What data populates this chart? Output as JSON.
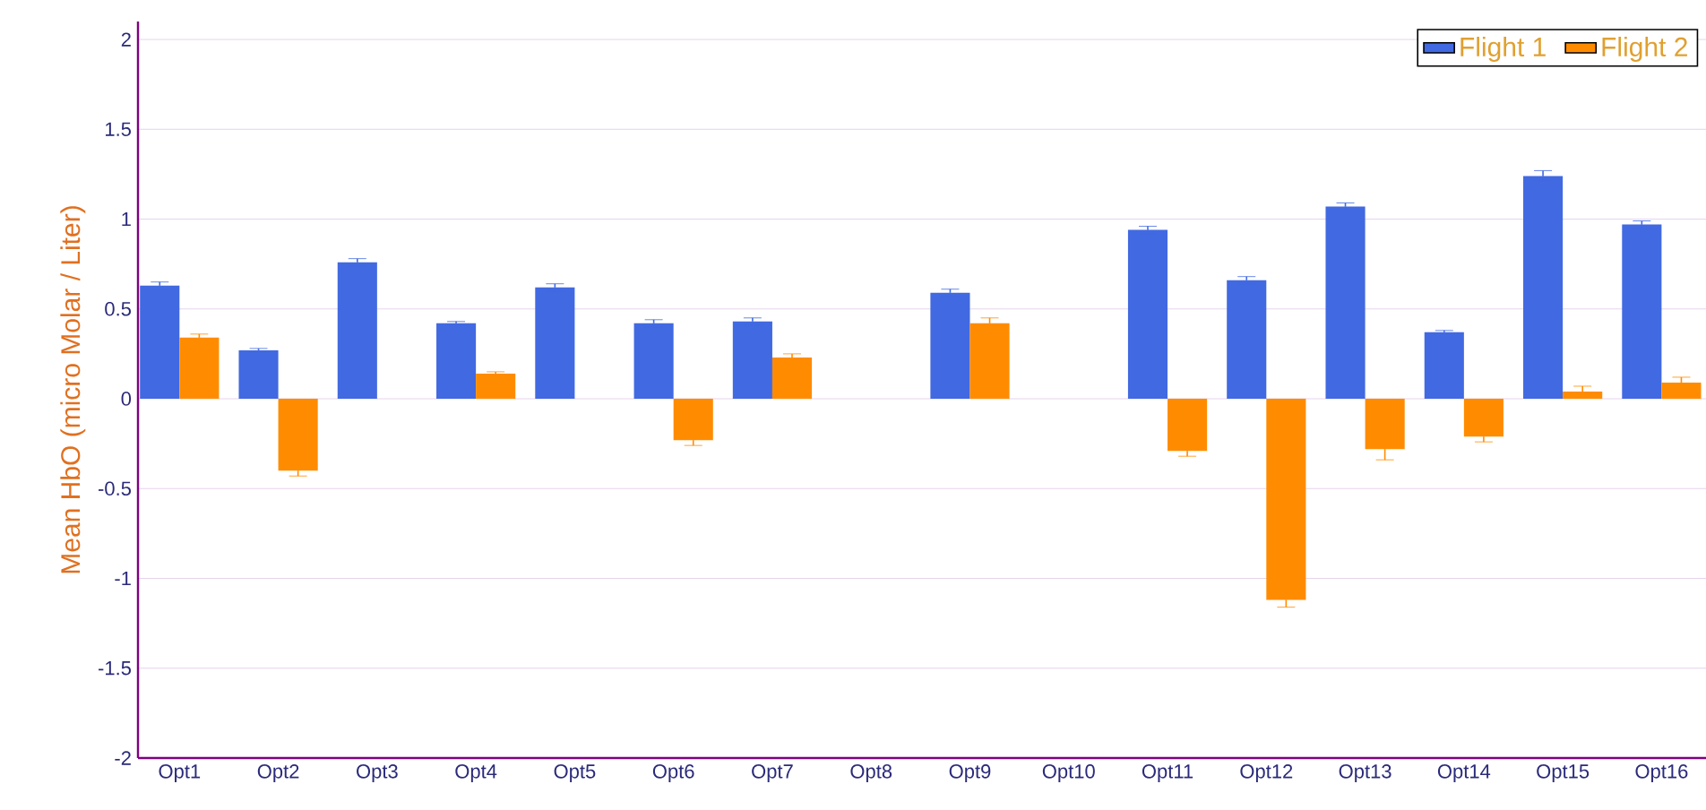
{
  "chart_data": {
    "type": "bar",
    "ylabel": "Mean HbO (micro Molar / Liter)",
    "categories": [
      "Opt1",
      "Opt2",
      "Opt3",
      "Opt4",
      "Opt5",
      "Opt6",
      "Opt7",
      "Opt8",
      "Opt9",
      "Opt10",
      "Opt11",
      "Opt12",
      "Opt13",
      "Opt14",
      "Opt15",
      "Opt16"
    ],
    "series": [
      {
        "name": "Flight 1",
        "color": "#4169e1",
        "values": [
          0.63,
          0.27,
          0.76,
          0.42,
          0.62,
          0.42,
          0.43,
          null,
          0.59,
          null,
          0.94,
          0.66,
          1.07,
          0.37,
          1.24,
          0.97
        ],
        "errors": [
          0.02,
          0.01,
          0.02,
          0.01,
          0.02,
          0.02,
          0.02,
          null,
          0.02,
          null,
          0.02,
          0.02,
          0.02,
          0.01,
          0.03,
          0.02
        ]
      },
      {
        "name": "Flight 2",
        "color": "#ff8c00",
        "values": [
          0.34,
          -0.4,
          null,
          0.14,
          null,
          -0.23,
          0.23,
          null,
          0.42,
          null,
          -0.29,
          -1.12,
          -0.28,
          -0.21,
          0.04,
          0.09
        ],
        "errors": [
          0.02,
          0.03,
          null,
          0.01,
          null,
          0.03,
          0.02,
          null,
          0.03,
          null,
          0.03,
          0.04,
          0.06,
          0.03,
          0.03,
          0.03
        ]
      }
    ],
    "ylim": [
      -2,
      2.1
    ],
    "yticks": [
      -2,
      -1.5,
      -1,
      -0.5,
      0,
      0.5,
      1,
      1.5,
      2
    ],
    "grid": "y",
    "legend": "top right"
  }
}
